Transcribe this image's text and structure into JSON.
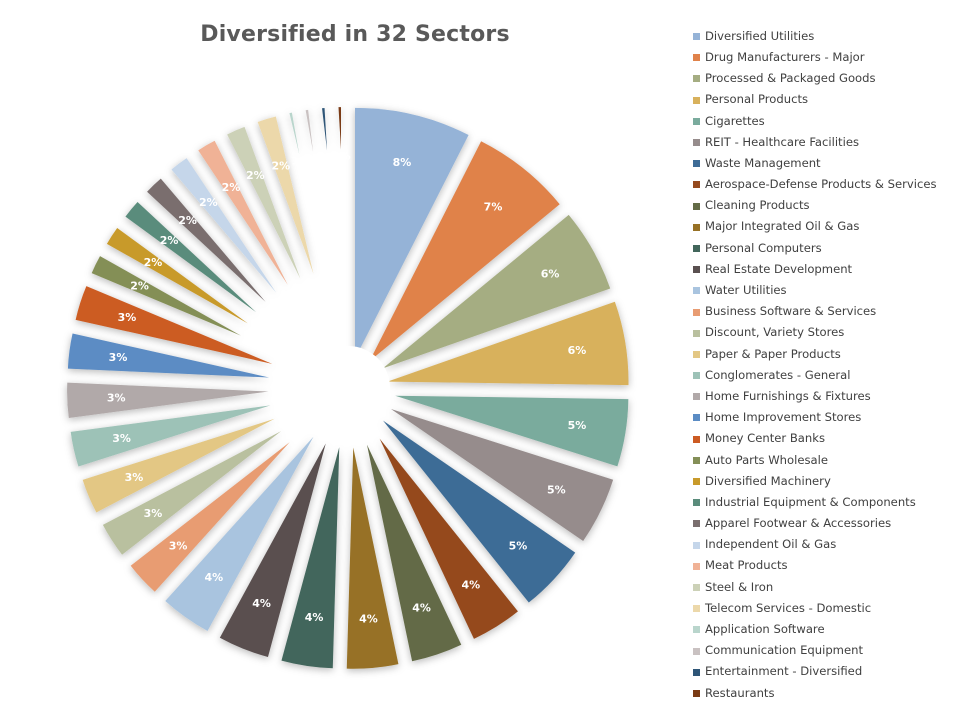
{
  "chart_data": {
    "type": "pie",
    "title": "Diversified in 32 Sectors",
    "legend_position": "right",
    "slices": [
      {
        "label": "Diversified Utilities",
        "value": 8,
        "display": "8%",
        "color": "#95b3d7"
      },
      {
        "label": "Drug Manufacturers - Major",
        "value": 7,
        "display": "7%",
        "color": "#e0824a"
      },
      {
        "label": "Processed & Packaged Goods",
        "value": 6,
        "display": "6%",
        "color": "#a5ad82"
      },
      {
        "label": "Personal Products",
        "value": 6,
        "display": "6%",
        "color": "#d8b15c"
      },
      {
        "label": "Cigarettes",
        "value": 5,
        "display": "5%",
        "color": "#7aab9d"
      },
      {
        "label": "REIT - Healthcare Facilities",
        "value": 5,
        "display": "5%",
        "color": "#968c8c"
      },
      {
        "label": "Waste Management",
        "value": 5,
        "display": "5%",
        "color": "#3e6c96"
      },
      {
        "label": "Aerospace-Defense Products & Services",
        "value": 4,
        "display": "4%",
        "color": "#954a1e"
      },
      {
        "label": "Cleaning Products",
        "value": 4,
        "display": "4%",
        "color": "#636b46"
      },
      {
        "label": "Major Integrated Oil & Gas",
        "value": 4,
        "display": "4%",
        "color": "#977125"
      },
      {
        "label": "Personal Computers",
        "value": 4,
        "display": "4%",
        "color": "#42665b"
      },
      {
        "label": "Real Estate Development",
        "value": 4,
        "display": "4%",
        "color": "#5a5050"
      },
      {
        "label": "Water Utilities",
        "value": 4,
        "display": "4%",
        "color": "#a9c4df"
      },
      {
        "label": "Business Software & Services",
        "value": 3,
        "display": "3%",
        "color": "#e89c72"
      },
      {
        "label": "Discount, Variety Stores",
        "value": 3,
        "display": "3%",
        "color": "#b9c09f"
      },
      {
        "label": "Paper & Paper Products",
        "value": 3,
        "display": "3%",
        "color": "#e3c784"
      },
      {
        "label": "Conglomerates - General",
        "value": 3,
        "display": "3%",
        "color": "#9dc2b7"
      },
      {
        "label": "Home Furnishings & Fixtures",
        "value": 3,
        "display": "3%",
        "color": "#b1a9a9"
      },
      {
        "label": "Home Improvement Stores",
        "value": 3,
        "display": "3%",
        "color": "#5b8cc4"
      },
      {
        "label": "Money Center Banks",
        "value": 3,
        "display": "3%",
        "color": "#cc5b23"
      },
      {
        "label": "Auto Parts Wholesale",
        "value": 2,
        "display": "2%",
        "color": "#848f57"
      },
      {
        "label": "Diversified Machinery",
        "value": 2,
        "display": "2%",
        "color": "#c89a2b"
      },
      {
        "label": "Industrial Equipment & Components",
        "value": 2,
        "display": "2%",
        "color": "#5a8c7b"
      },
      {
        "label": "Apparel Footwear & Accessories",
        "value": 2,
        "display": "2%",
        "color": "#7a6e6e"
      },
      {
        "label": "Independent Oil & Gas",
        "value": 2,
        "display": "2%",
        "color": "#c5d6ea"
      },
      {
        "label": "Meat Products",
        "value": 2,
        "display": "2%",
        "color": "#f0b296"
      },
      {
        "label": "Steel & Iron",
        "value": 2,
        "display": "2%",
        "color": "#ccd1b7"
      },
      {
        "label": "Telecom Services - Domestic",
        "value": 2,
        "display": "2%",
        "color": "#ecd8aa"
      },
      {
        "label": "Application Software",
        "value": 1,
        "display": "1%",
        "color": "#b9d5cc"
      },
      {
        "label": "Communication Equipment",
        "value": 1,
        "display": "1%",
        "color": "#c9c1c1"
      },
      {
        "label": "Entertainment - Diversified",
        "value": 1,
        "display": "1%",
        "color": "#2e5577"
      },
      {
        "label": "Restaurants",
        "value": 1,
        "display": "1%",
        "color": "#7a3a14"
      }
    ]
  }
}
